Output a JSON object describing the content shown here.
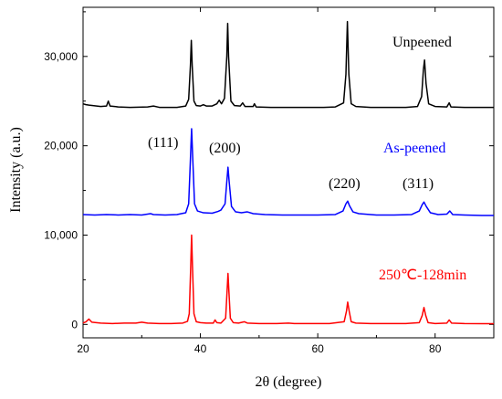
{
  "chart_data": {
    "type": "line",
    "xlabel": "2θ  (degree)",
    "ylabel": "Intensity (a.u.)",
    "xlim": [
      20,
      90
    ],
    "ylim": [
      -1500,
      35500
    ],
    "x_ticks": [
      20,
      40,
      60,
      80
    ],
    "y_ticks": [
      0,
      10000,
      20000,
      30000
    ],
    "y_tick_labels": [
      "0",
      "10,000",
      "20,000",
      "30,000"
    ],
    "grid": false,
    "series": [
      {
        "name": "Unpeened",
        "color": "#000000",
        "baseline": 24300,
        "points": [
          [
            20,
            24700
          ],
          [
            20.5,
            24600
          ],
          [
            21,
            24550
          ],
          [
            23,
            24400
          ],
          [
            24,
            24450
          ],
          [
            24.3,
            25000
          ],
          [
            24.6,
            24450
          ],
          [
            26,
            24350
          ],
          [
            28,
            24300
          ],
          [
            31,
            24350
          ],
          [
            32,
            24450
          ],
          [
            33,
            24300
          ],
          [
            36,
            24300
          ],
          [
            37.5,
            24450
          ],
          [
            38,
            25200
          ],
          [
            38.3,
            29000
          ],
          [
            38.45,
            31800
          ],
          [
            38.6,
            29000
          ],
          [
            38.9,
            25000
          ],
          [
            39.3,
            24500
          ],
          [
            40,
            24450
          ],
          [
            40.5,
            24600
          ],
          [
            41,
            24450
          ],
          [
            42,
            24450
          ],
          [
            42.8,
            24700
          ],
          [
            43.2,
            25100
          ],
          [
            43.6,
            24700
          ],
          [
            44.1,
            25300
          ],
          [
            44.5,
            30000
          ],
          [
            44.65,
            33700
          ],
          [
            44.8,
            30000
          ],
          [
            45.2,
            25000
          ],
          [
            45.8,
            24500
          ],
          [
            46.8,
            24450
          ],
          [
            47.2,
            24800
          ],
          [
            47.6,
            24400
          ],
          [
            49,
            24400
          ],
          [
            49.2,
            24700
          ],
          [
            49.5,
            24350
          ],
          [
            52,
            24300
          ],
          [
            55,
            24300
          ],
          [
            58,
            24300
          ],
          [
            61,
            24300
          ],
          [
            63,
            24350
          ],
          [
            64.4,
            24800
          ],
          [
            64.8,
            28000
          ],
          [
            65.05,
            33900
          ],
          [
            65.3,
            28000
          ],
          [
            65.7,
            24700
          ],
          [
            66.5,
            24400
          ],
          [
            69,
            24300
          ],
          [
            72,
            24300
          ],
          [
            75,
            24300
          ],
          [
            77,
            24400
          ],
          [
            77.7,
            25500
          ],
          [
            78,
            28500
          ],
          [
            78.2,
            29600
          ],
          [
            78.45,
            27000
          ],
          [
            78.9,
            24700
          ],
          [
            80,
            24400
          ],
          [
            82,
            24350
          ],
          [
            82.4,
            24800
          ],
          [
            82.7,
            24350
          ],
          [
            85,
            24300
          ],
          [
            88,
            24300
          ],
          [
            90,
            24300
          ]
        ]
      },
      {
        "name": "As-peened",
        "color": "#0000ff",
        "baseline": 12200,
        "points": [
          [
            20,
            12300
          ],
          [
            22,
            12250
          ],
          [
            24,
            12300
          ],
          [
            26,
            12250
          ],
          [
            28,
            12300
          ],
          [
            30,
            12250
          ],
          [
            31.5,
            12400
          ],
          [
            32,
            12300
          ],
          [
            34,
            12250
          ],
          [
            36,
            12300
          ],
          [
            37.5,
            12500
          ],
          [
            38,
            13500
          ],
          [
            38.3,
            18500
          ],
          [
            38.5,
            21900
          ],
          [
            38.7,
            18500
          ],
          [
            39,
            13500
          ],
          [
            39.5,
            12700
          ],
          [
            40.5,
            12500
          ],
          [
            42,
            12450
          ],
          [
            43,
            12650
          ],
          [
            43.5,
            12800
          ],
          [
            44.2,
            13500
          ],
          [
            44.5,
            16000
          ],
          [
            44.7,
            17600
          ],
          [
            44.9,
            16000
          ],
          [
            45.3,
            13200
          ],
          [
            46,
            12600
          ],
          [
            47,
            12500
          ],
          [
            48,
            12600
          ],
          [
            49,
            12400
          ],
          [
            51,
            12300
          ],
          [
            54,
            12250
          ],
          [
            57,
            12250
          ],
          [
            60,
            12250
          ],
          [
            63,
            12300
          ],
          [
            64.3,
            12700
          ],
          [
            64.8,
            13500
          ],
          [
            65.1,
            13800
          ],
          [
            65.4,
            13300
          ],
          [
            66,
            12600
          ],
          [
            67,
            12400
          ],
          [
            70,
            12250
          ],
          [
            73,
            12250
          ],
          [
            76,
            12300
          ],
          [
            77.3,
            12700
          ],
          [
            77.8,
            13400
          ],
          [
            78.1,
            13700
          ],
          [
            78.5,
            13200
          ],
          [
            79.2,
            12500
          ],
          [
            80.5,
            12300
          ],
          [
            82,
            12350
          ],
          [
            82.5,
            12700
          ],
          [
            83,
            12300
          ],
          [
            85,
            12250
          ],
          [
            88,
            12200
          ],
          [
            90,
            12200
          ]
        ]
      },
      {
        "name": "250℃-128min",
        "color": "#ff0000",
        "baseline": 0,
        "points": [
          [
            20,
            150
          ],
          [
            20.5,
            300
          ],
          [
            21,
            600
          ],
          [
            21.5,
            250
          ],
          [
            23,
            150
          ],
          [
            25,
            100
          ],
          [
            27,
            150
          ],
          [
            29,
            150
          ],
          [
            30,
            250
          ],
          [
            31,
            150
          ],
          [
            33,
            100
          ],
          [
            35,
            100
          ],
          [
            37,
            150
          ],
          [
            37.8,
            350
          ],
          [
            38.1,
            1200
          ],
          [
            38.35,
            6500
          ],
          [
            38.5,
            10000
          ],
          [
            38.65,
            6500
          ],
          [
            38.9,
            1200
          ],
          [
            39.3,
            300
          ],
          [
            40,
            200
          ],
          [
            41,
            150
          ],
          [
            42.2,
            150
          ],
          [
            42.5,
            500
          ],
          [
            42.8,
            200
          ],
          [
            43.5,
            150
          ],
          [
            44.3,
            700
          ],
          [
            44.55,
            3800
          ],
          [
            44.7,
            5700
          ],
          [
            44.85,
            3800
          ],
          [
            45.1,
            700
          ],
          [
            45.6,
            200
          ],
          [
            46.5,
            150
          ],
          [
            47.5,
            300
          ],
          [
            48,
            150
          ],
          [
            50,
            100
          ],
          [
            53,
            100
          ],
          [
            55,
            150
          ],
          [
            56,
            100
          ],
          [
            58,
            100
          ],
          [
            60,
            100
          ],
          [
            62,
            100
          ],
          [
            64.5,
            300
          ],
          [
            64.9,
            1500
          ],
          [
            65.1,
            2500
          ],
          [
            65.35,
            1500
          ],
          [
            65.7,
            300
          ],
          [
            66.5,
            150
          ],
          [
            69,
            100
          ],
          [
            72,
            100
          ],
          [
            75,
            100
          ],
          [
            77.3,
            200
          ],
          [
            77.8,
            1000
          ],
          [
            78.1,
            1900
          ],
          [
            78.4,
            1000
          ],
          [
            78.8,
            200
          ],
          [
            80,
            100
          ],
          [
            82,
            150
          ],
          [
            82.4,
            500
          ],
          [
            82.8,
            150
          ],
          [
            85,
            100
          ],
          [
            88,
            80
          ],
          [
            90,
            80
          ]
        ]
      }
    ],
    "legend_labels": [
      {
        "text": "Unpeened",
        "color": "#000000"
      },
      {
        "text": "As-peened",
        "color": "#0000ff"
      },
      {
        "text": "250℃-128min",
        "color": "#ff0000"
      }
    ],
    "annotations": [
      {
        "text": "(111)",
        "x": 38.5,
        "y": 21900
      },
      {
        "text": "(200)",
        "x": 44.7,
        "y": 17600
      },
      {
        "text": "(220)",
        "x": 65.1,
        "y": 13800
      },
      {
        "text": "(311)",
        "x": 78.1,
        "y": 13700
      }
    ]
  }
}
